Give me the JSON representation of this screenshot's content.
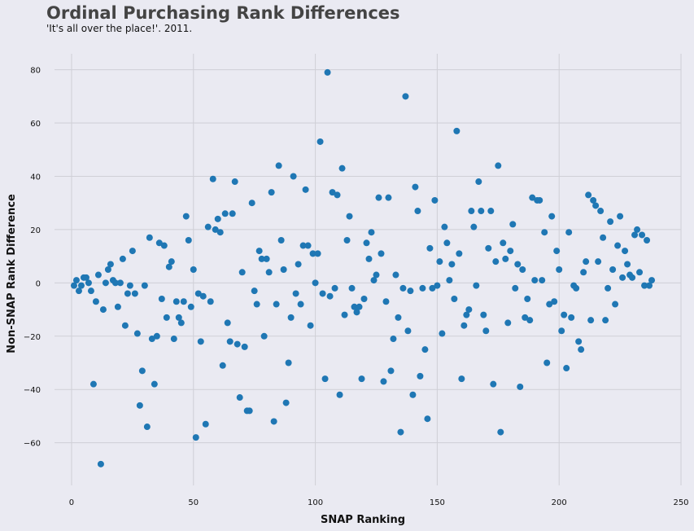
{
  "chart_data": {
    "type": "scatter",
    "title": "Ordinal Purchasing Rank Differences",
    "subtitle": "'It's all over the place!'. 2011.",
    "xlabel": "SNAP Ranking",
    "ylabel": "Non-SNAP Rank Difference",
    "xlim": [
      -7,
      250
    ],
    "ylim": [
      -76,
      86
    ],
    "xticks": [
      0,
      50,
      100,
      150,
      200,
      250
    ],
    "yticks": [
      -60,
      -40,
      -20,
      0,
      20,
      40,
      60,
      80
    ],
    "grid": true,
    "marker_color": "#1f77b4",
    "x": [
      1,
      2,
      3,
      4,
      5,
      6,
      7,
      8,
      9,
      10,
      11,
      12,
      13,
      14,
      15,
      16,
      17,
      18,
      19,
      20,
      21,
      22,
      23,
      24,
      25,
      26,
      27,
      28,
      29,
      30,
      31,
      32,
      33,
      34,
      35,
      36,
      37,
      38,
      39,
      40,
      41,
      42,
      43,
      44,
      45,
      46,
      47,
      48,
      49,
      50,
      51,
      52,
      53,
      54,
      55,
      56,
      57,
      58,
      59,
      60,
      61,
      62,
      63,
      64,
      65,
      66,
      67,
      68,
      69,
      70,
      71,
      72,
      73,
      74,
      75,
      76,
      77,
      78,
      79,
      80,
      81,
      82,
      83,
      84,
      85,
      86,
      87,
      88,
      89,
      90,
      91,
      92,
      93,
      94,
      95,
      96,
      97,
      98,
      99,
      100,
      101,
      102,
      103,
      104,
      105,
      106,
      107,
      108,
      109,
      110,
      111,
      112,
      113,
      114,
      115,
      116,
      117,
      118,
      119,
      120,
      121,
      122,
      123,
      124,
      125,
      126,
      127,
      128,
      129,
      130,
      131,
      132,
      133,
      134,
      135,
      136,
      137,
      138,
      139,
      140,
      141,
      142,
      143,
      144,
      145,
      146,
      147,
      148,
      149,
      150,
      151,
      152,
      153,
      154,
      155,
      156,
      157,
      158,
      159,
      160,
      161,
      162,
      163,
      164,
      165,
      166,
      167,
      168,
      169,
      170,
      171,
      172,
      173,
      174,
      175,
      176,
      177,
      178,
      179,
      180,
      181,
      182,
      183,
      184,
      185,
      186,
      187,
      188,
      189,
      190,
      191,
      192,
      193,
      194,
      195,
      196,
      197,
      198,
      199,
      200,
      201,
      202,
      203,
      204,
      205,
      206,
      207,
      208,
      209,
      210,
      211,
      212,
      213,
      214,
      215,
      216,
      217,
      218,
      219,
      220,
      221,
      222,
      223,
      224,
      225,
      226,
      227,
      228,
      229,
      230,
      231,
      232,
      233,
      234,
      235,
      236,
      237,
      238
    ],
    "y": [
      -1,
      1,
      -3,
      -1,
      2,
      2,
      0,
      -3,
      -38,
      -7,
      3,
      -68,
      -10,
      0,
      5,
      7,
      1,
      0,
      -9,
      0,
      9,
      -16,
      -4,
      -1,
      12,
      -4,
      -19,
      -46,
      -33,
      -1,
      -54,
      17,
      -21,
      -38,
      -20,
      15,
      -6,
      14,
      -13,
      6,
      8,
      -21,
      -7,
      -13,
      -15,
      -7,
      25,
      16,
      -9,
      5,
      -58,
      -4,
      -22,
      -5,
      -53,
      21,
      -7,
      39,
      20,
      24,
      19,
      -31,
      26,
      -15,
      -22,
      26,
      38,
      -23,
      -43,
      4,
      -24,
      -48,
      -48,
      30,
      -3,
      -8,
      12,
      9,
      -20,
      9,
      4,
      34,
      -52,
      -8,
      44,
      16,
      5,
      -45,
      -30,
      -13,
      40,
      -4,
      7,
      -8,
      14,
      35,
      14,
      -16,
      11,
      0,
      11,
      53,
      -4,
      -36,
      79,
      -5,
      34,
      -2,
      33,
      -42,
      43,
      -12,
      16,
      25,
      -2,
      -9,
      -11,
      -9,
      -36,
      -6,
      15,
      9,
      19,
      1,
      3,
      32,
      11,
      -37,
      -7,
      32,
      -33,
      -21,
      3,
      -13,
      -56,
      -2,
      70,
      -18,
      -3,
      -42,
      36,
      27,
      -35,
      -2,
      -25,
      -51,
      13,
      -2,
      31,
      -1,
      8,
      -19,
      21,
      15,
      1,
      7,
      -6,
      57,
      11,
      -36,
      -16,
      -12,
      -10,
      27,
      21,
      -1,
      38,
      27,
      -12,
      -18,
      13,
      27,
      -38,
      8,
      44,
      -56,
      15,
      9,
      -15,
      12,
      22,
      -2,
      7,
      -39,
      5,
      -13,
      -6,
      -14,
      32,
      1,
      31,
      31,
      1,
      19,
      -30,
      -8,
      25,
      -7,
      12,
      5,
      -18,
      -12,
      -32,
      19,
      -13,
      -1,
      -2,
      -22,
      -25,
      4,
      8,
      33,
      -14,
      31,
      29,
      8,
      27,
      17,
      -14,
      -2,
      23,
      5,
      -8,
      14,
      25,
      2,
      12,
      7,
      3,
      2,
      18,
      20,
      4,
      18,
      -1,
      16,
      -1,
      1
    ]
  }
}
